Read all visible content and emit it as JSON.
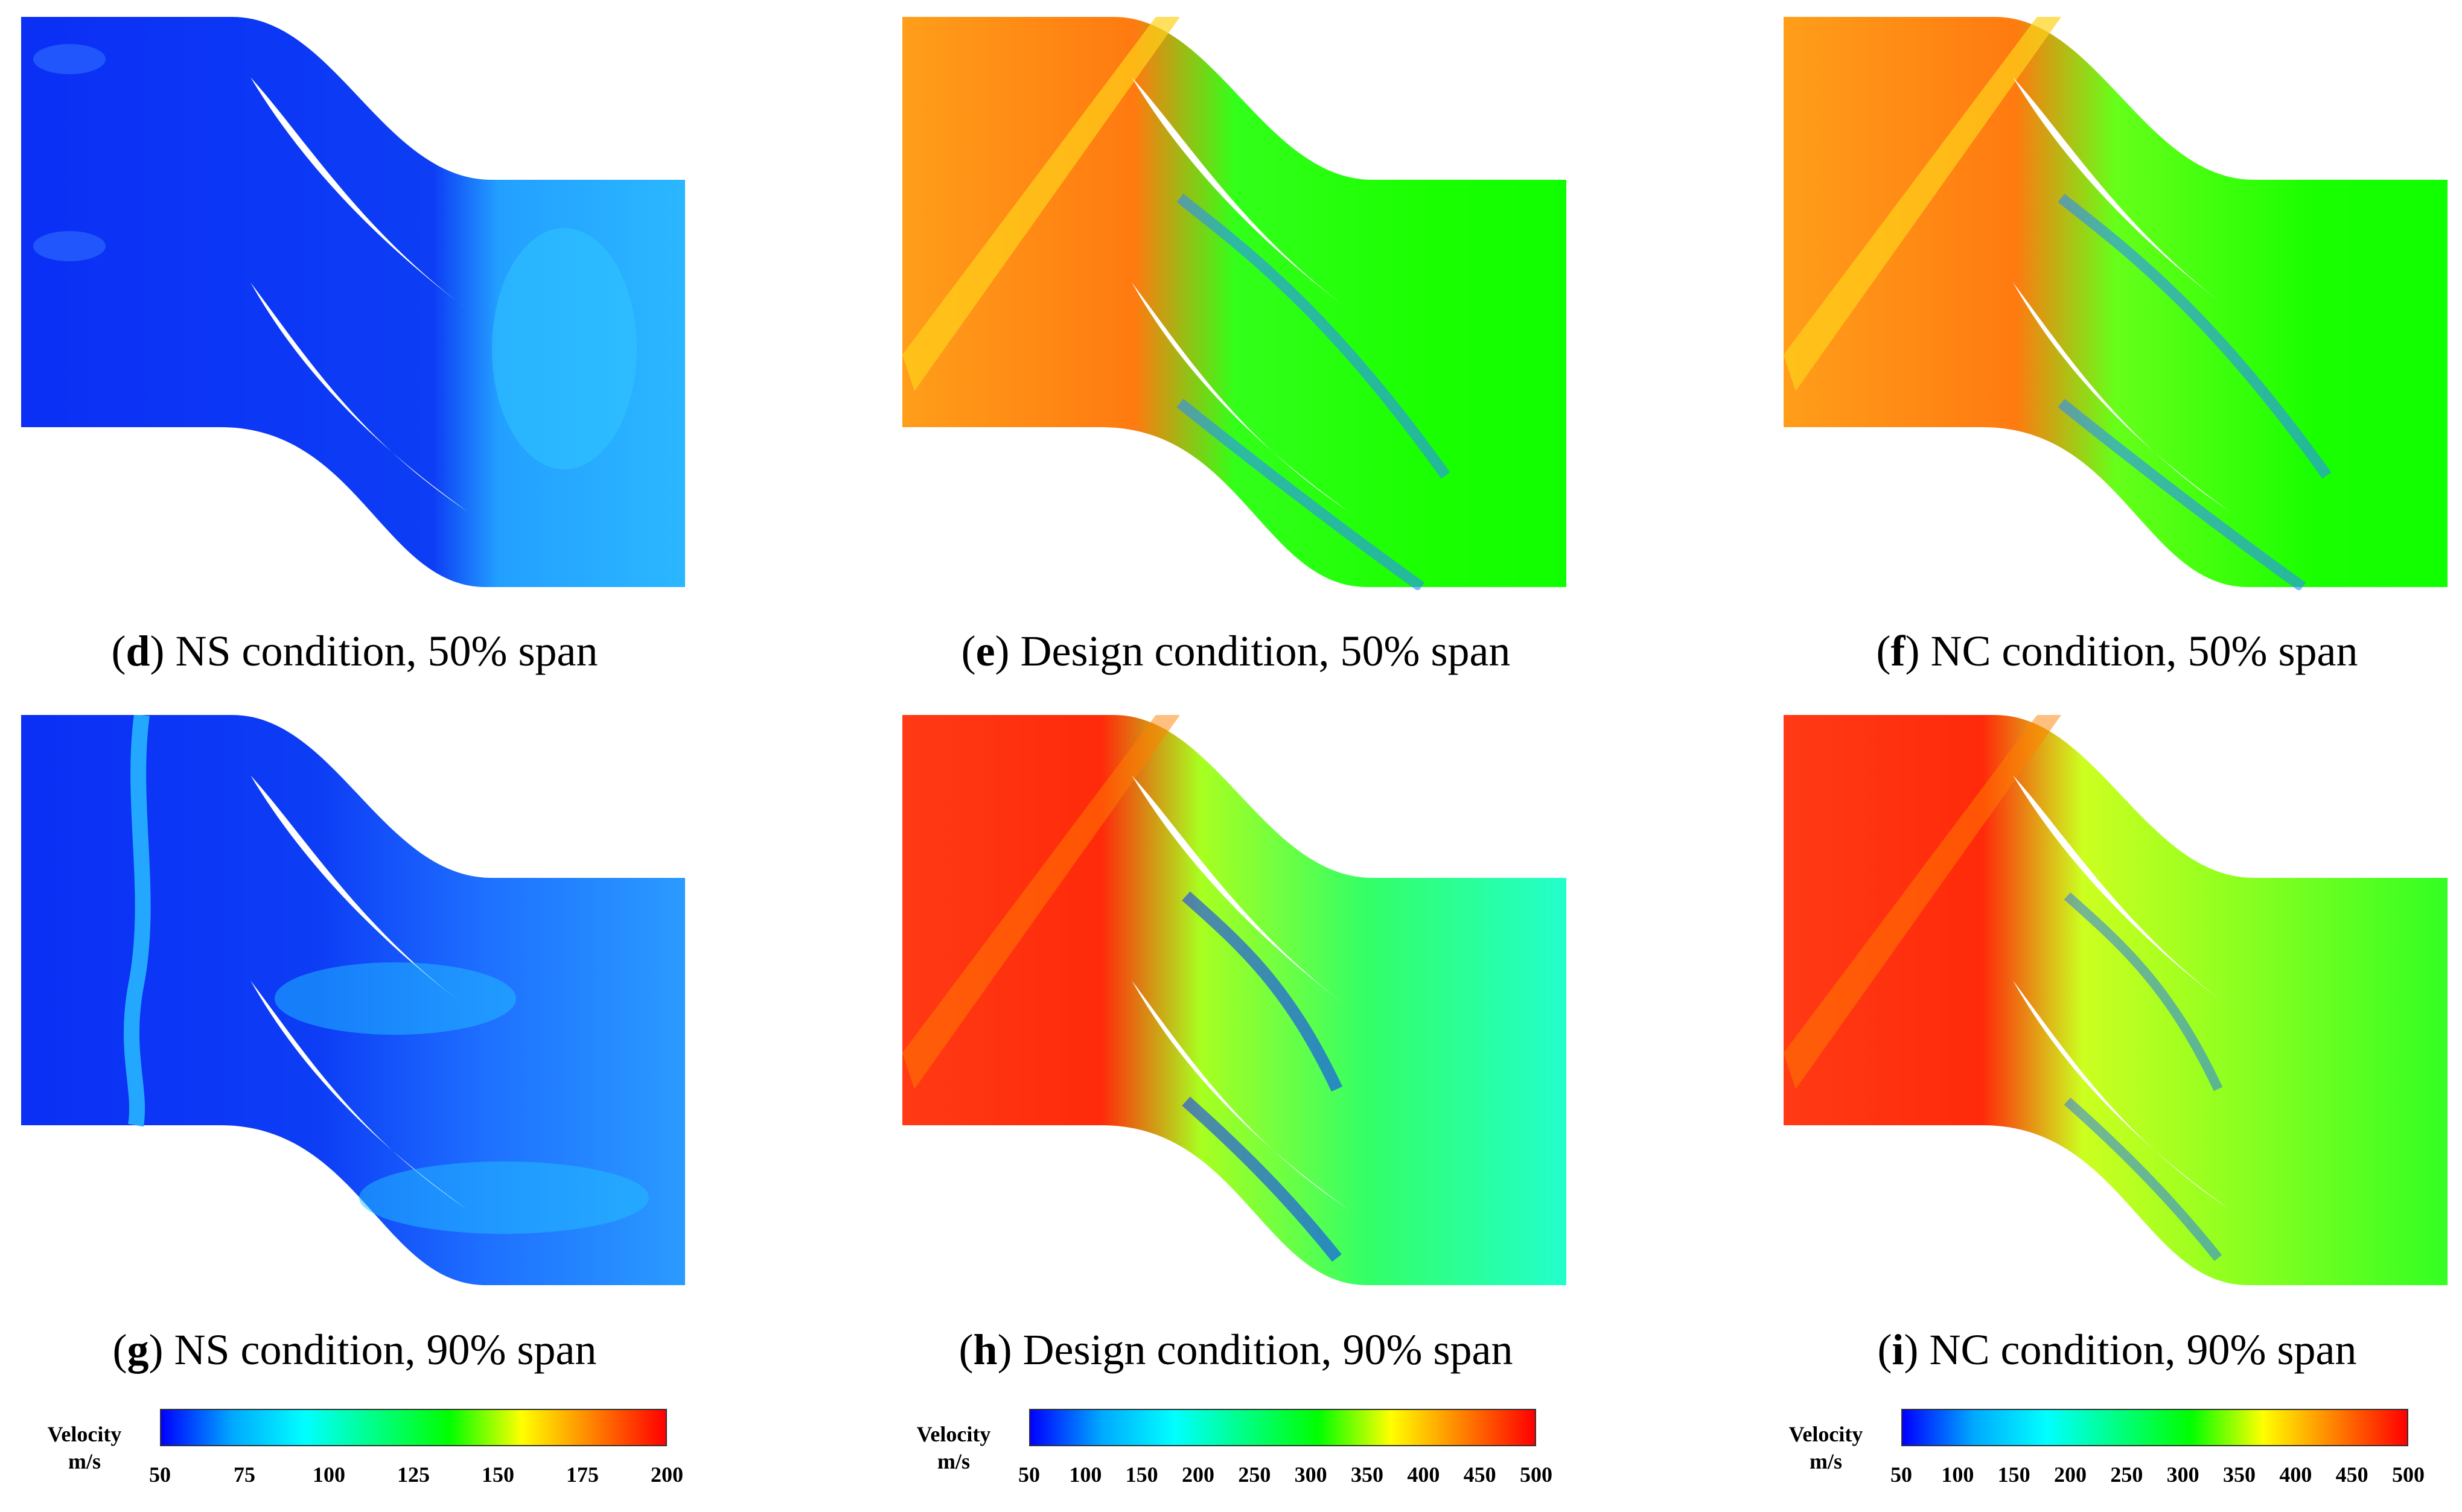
{
  "panels": [
    {
      "id": "d",
      "condition": "NS condition, 50% span",
      "field": "ns50"
    },
    {
      "id": "e",
      "condition": "Design condition, 50% span",
      "field": "ds50"
    },
    {
      "id": "f",
      "condition": "NC condition, 50% span",
      "field": "nc50"
    },
    {
      "id": "g",
      "condition": "NS condition, 90% span",
      "field": "ns90"
    },
    {
      "id": "h",
      "condition": "Design condition, 90% span",
      "field": "ds90"
    },
    {
      "id": "i",
      "condition": "NC condition, 90% span",
      "field": "nc90"
    }
  ],
  "colorbars": [
    {
      "title": "Velocity",
      "unit": "m/s",
      "ticks": [
        "50",
        "75",
        "100",
        "125",
        "150",
        "175",
        "200"
      ]
    },
    {
      "title": "Velocity",
      "unit": "m/s",
      "ticks": [
        "50",
        "100",
        "150",
        "200",
        "250",
        "300",
        "350",
        "400",
        "450",
        "500"
      ]
    },
    {
      "title": "Velocity",
      "unit": "m/s",
      "ticks": [
        "50",
        "100",
        "150",
        "200",
        "250",
        "300",
        "350",
        "400",
        "450",
        "500"
      ]
    }
  ],
  "colors": {
    "colormap": [
      "#0000ff",
      "#00aaff",
      "#00ffff",
      "#00ff80",
      "#00ff00",
      "#ffff00",
      "#ff8000",
      "#ff0000"
    ],
    "blade": "#ffffff"
  }
}
